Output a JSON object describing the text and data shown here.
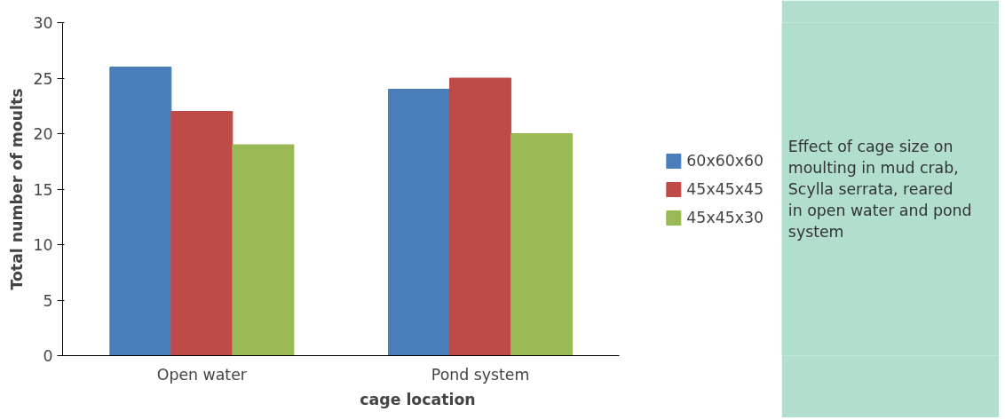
{
  "chart_data": {
    "type": "bar",
    "xlabel": "cage location",
    "ylabel": "Total number of moults",
    "categories": [
      "Open water",
      "Pond system"
    ],
    "series": [
      {
        "name": "60x60x60",
        "color": "#4a7ebb",
        "values": [
          26,
          24
        ]
      },
      {
        "name": "45x45x45",
        "color": "#be4b48",
        "values": [
          22,
          25
        ]
      },
      {
        "name": "45x45x30",
        "color": "#98b954",
        "values": [
          19,
          20
        ]
      }
    ],
    "ylim": [
      0,
      30
    ],
    "yticks": [
      0,
      5,
      10,
      15,
      20,
      25,
      30
    ],
    "grid": false,
    "legend": "right",
    "annotations": [
      "Effect of cage size on moulting in mud crab, Scylla serrata, reared in open water and pond system"
    ]
  }
}
